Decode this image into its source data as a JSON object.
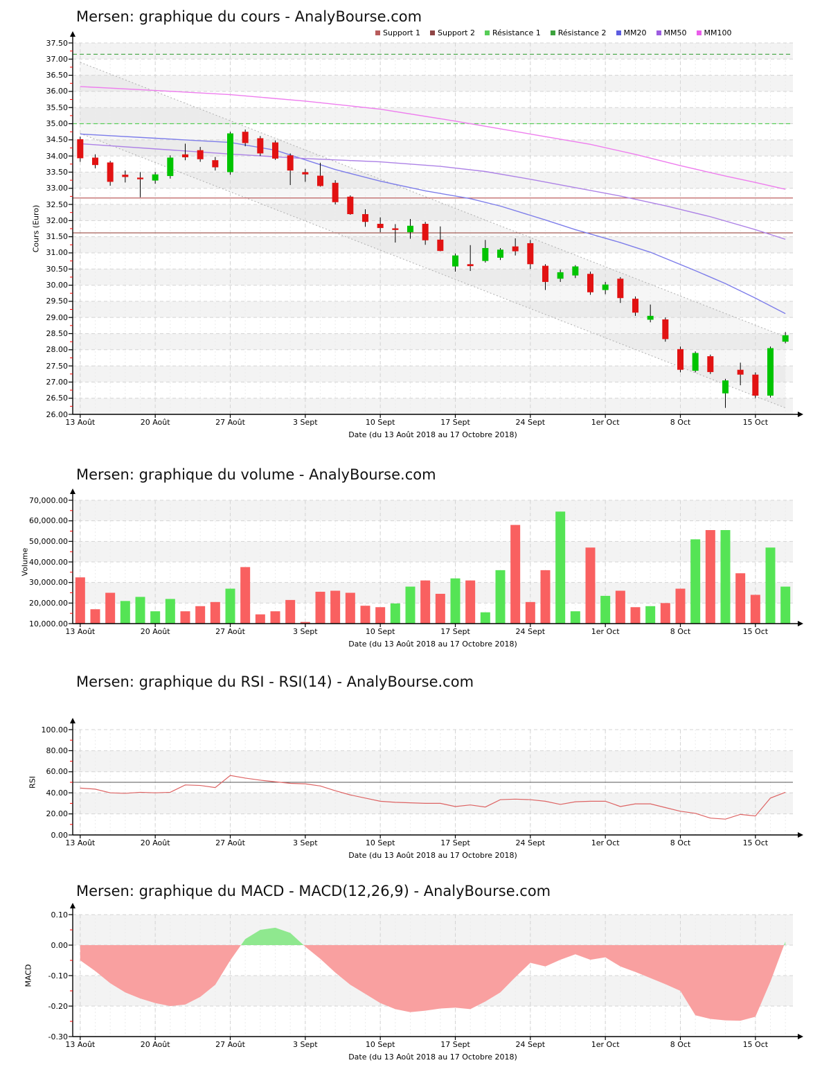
{
  "x_axis": {
    "title": "Date (du 13 Août 2018 au 17 Octobre 2018)",
    "n_days": 48,
    "tick_days": [
      0,
      5,
      10,
      15,
      20,
      25,
      30,
      35,
      40,
      45
    ],
    "tick_labels": [
      "13 Août",
      "20 Août",
      "27 Août",
      "3 Sept",
      "10 Sept",
      "17 Sept",
      "24 Sept",
      "1er Oct",
      "8 Oct",
      "15 Oct"
    ],
    "dates": [
      "13/08",
      "14/08",
      "15/08",
      "16/08",
      "17/08",
      "20/08",
      "21/08",
      "22/08",
      "23/08",
      "24/08",
      "27/08",
      "28/08",
      "29/08",
      "30/08",
      "31/08",
      "03/09",
      "04/09",
      "05/09",
      "06/09",
      "07/09",
      "10/09",
      "11/09",
      "12/09",
      "13/09",
      "14/09",
      "17/09",
      "18/09",
      "19/09",
      "20/09",
      "21/09",
      "24/09",
      "25/09",
      "26/09",
      "27/09",
      "28/09",
      "01/10",
      "02/10",
      "03/10",
      "04/10",
      "05/10",
      "08/10",
      "09/10",
      "10/10",
      "11/10",
      "12/10",
      "15/10",
      "16/10",
      "17/10"
    ]
  },
  "legend": {
    "items": [
      {
        "label": "Support 1",
        "color": "#b85c5c"
      },
      {
        "label": "Support 2",
        "color": "#8f4646"
      },
      {
        "label": "Résistance 1",
        "color": "#57cd57"
      },
      {
        "label": "Résistance 2",
        "color": "#3da23d"
      },
      {
        "label": "MM20",
        "color": "#5c5ce0"
      },
      {
        "label": "MM50",
        "color": "#9c5ce0"
      },
      {
        "label": "MM100",
        "color": "#ea5cea"
      }
    ]
  },
  "chart_data": [
    {
      "id": "price",
      "type": "candlestick",
      "title": "Mersen: graphique du cours - AnalyBourse.com",
      "ylabel": "Cours (Euro)",
      "ylim": [
        26.0,
        37.5
      ],
      "band_first_shaded": true,
      "y_tick_labels": [
        "37.50",
        "37.00",
        "36.50",
        "36.00",
        "35.50",
        "35.00",
        "34.50",
        "34.00",
        "33.50",
        "33.00",
        "32.50",
        "32.00",
        "31.50",
        "31.00",
        "30.50",
        "30.00",
        "29.50",
        "29.00",
        "28.50",
        "28.00",
        "27.50",
        "27.00",
        "26.50",
        "26.00"
      ],
      "colors": {
        "up": "#00c400",
        "down": "#e21212",
        "wick": "#000000"
      },
      "ohlc": [
        [
          34.52,
          34.6,
          33.82,
          33.93
        ],
        [
          33.95,
          34.05,
          33.62,
          33.72
        ],
        [
          33.8,
          33.85,
          33.08,
          33.2
        ],
        [
          33.42,
          33.55,
          33.18,
          33.35
        ],
        [
          33.33,
          33.5,
          32.72,
          33.28
        ],
        [
          33.24,
          33.5,
          33.14,
          33.43
        ],
        [
          33.38,
          34.02,
          33.3,
          33.95
        ],
        [
          34.05,
          34.38,
          33.87,
          33.96
        ],
        [
          34.18,
          34.28,
          33.82,
          33.9
        ],
        [
          33.87,
          33.97,
          33.55,
          33.65
        ],
        [
          33.5,
          34.75,
          33.42,
          34.7
        ],
        [
          34.75,
          34.82,
          34.3,
          34.4
        ],
        [
          34.55,
          34.62,
          34.0,
          34.08
        ],
        [
          34.42,
          34.48,
          33.88,
          33.92
        ],
        [
          34.02,
          34.08,
          33.1,
          33.55
        ],
        [
          33.5,
          33.6,
          33.2,
          33.43
        ],
        [
          33.39,
          33.79,
          33.05,
          33.07
        ],
        [
          33.17,
          33.25,
          32.5,
          32.57
        ],
        [
          32.74,
          32.78,
          32.18,
          32.2
        ],
        [
          32.2,
          32.35,
          31.81,
          31.96
        ],
        [
          31.9,
          32.1,
          31.64,
          31.77
        ],
        [
          31.76,
          31.89,
          31.32,
          31.71
        ],
        [
          31.64,
          32.05,
          31.44,
          31.84
        ],
        [
          31.9,
          31.96,
          31.25,
          31.39
        ],
        [
          31.41,
          31.82,
          31.05,
          31.06
        ],
        [
          30.58,
          30.98,
          30.42,
          30.92
        ],
        [
          30.65,
          31.24,
          30.44,
          30.59
        ],
        [
          30.75,
          31.4,
          30.7,
          31.15
        ],
        [
          30.85,
          31.15,
          30.78,
          31.1
        ],
        [
          31.2,
          31.45,
          30.92,
          31.05
        ],
        [
          31.3,
          31.4,
          30.5,
          30.65
        ],
        [
          30.6,
          30.65,
          29.85,
          30.1
        ],
        [
          30.2,
          30.48,
          30.1,
          30.4
        ],
        [
          30.3,
          30.62,
          30.22,
          30.58
        ],
        [
          30.35,
          30.42,
          29.7,
          29.78
        ],
        [
          29.85,
          30.1,
          29.72,
          30.02
        ],
        [
          30.2,
          30.25,
          29.45,
          29.6
        ],
        [
          29.58,
          29.65,
          29.05,
          29.15
        ],
        [
          28.93,
          29.4,
          28.85,
          29.05
        ],
        [
          28.94,
          29.0,
          28.25,
          28.33
        ],
        [
          28.02,
          28.1,
          27.3,
          27.38
        ],
        [
          27.35,
          27.95,
          27.3,
          27.9
        ],
        [
          27.8,
          27.85,
          27.25,
          27.31
        ],
        [
          26.65,
          27.1,
          26.2,
          27.05
        ],
        [
          27.38,
          27.6,
          26.9,
          27.23
        ],
        [
          27.23,
          27.3,
          26.5,
          26.58
        ],
        [
          26.58,
          28.1,
          26.52,
          28.05
        ],
        [
          28.25,
          28.55,
          28.2,
          28.45
        ]
      ],
      "overlays": {
        "hlines": [
          {
            "name": "resistance2",
            "value": 37.15,
            "color": "#3da23d",
            "dash": "6 4"
          },
          {
            "name": "resistance1",
            "value": 35.0,
            "color": "#57cd57",
            "dash": "6 4"
          },
          {
            "name": "support1",
            "value": 32.7,
            "color": "#bb5f5f",
            "dash": ""
          },
          {
            "name": "support2",
            "value": 31.62,
            "color": "#9a4a42",
            "dash": ""
          }
        ],
        "mm": [
          {
            "name": "mm20",
            "color": "#7d7dea",
            "points": [
              [
                0,
                34.68
              ],
              [
                5,
                34.55
              ],
              [
                10,
                34.42
              ],
              [
                13,
                34.18
              ],
              [
                15,
                33.88
              ],
              [
                17,
                33.58
              ],
              [
                20,
                33.22
              ],
              [
                23,
                32.92
              ],
              [
                26,
                32.68
              ],
              [
                28,
                32.45
              ],
              [
                31,
                32.02
              ],
              [
                33,
                31.72
              ],
              [
                36,
                31.32
              ],
              [
                38,
                31.02
              ],
              [
                41,
                30.45
              ],
              [
                43,
                30.05
              ],
              [
                45,
                29.6
              ],
              [
                47,
                29.12
              ]
            ]
          },
          {
            "name": "mm50",
            "color": "#ad82e6",
            "points": [
              [
                0,
                34.38
              ],
              [
                5,
                34.22
              ],
              [
                10,
                34.06
              ],
              [
                15,
                33.92
              ],
              [
                20,
                33.82
              ],
              [
                24,
                33.68
              ],
              [
                27,
                33.52
              ],
              [
                30,
                33.28
              ],
              [
                33,
                33.02
              ],
              [
                36,
                32.76
              ],
              [
                39,
                32.46
              ],
              [
                42,
                32.12
              ],
              [
                45,
                31.72
              ],
              [
                47,
                31.42
              ]
            ]
          },
          {
            "name": "mm100",
            "color": "#ee7dee",
            "points": [
              [
                0,
                36.15
              ],
              [
                5,
                36.03
              ],
              [
                10,
                35.9
              ],
              [
                15,
                35.7
              ],
              [
                20,
                35.45
              ],
              [
                25,
                35.08
              ],
              [
                28,
                34.84
              ],
              [
                31,
                34.6
              ],
              [
                34,
                34.36
              ],
              [
                37,
                34.05
              ],
              [
                40,
                33.7
              ],
              [
                43,
                33.38
              ],
              [
                45,
                33.18
              ],
              [
                47,
                32.97
              ]
            ]
          }
        ],
        "channel": {
          "color": "#b4b4b4",
          "fill": "rgba(140,140,140,0.08)",
          "upper": [
            [
              0,
              36.9
            ],
            [
              47,
              28.4
            ]
          ],
          "lower": [
            [
              0,
              34.7
            ],
            [
              47,
              26.2
            ]
          ]
        }
      }
    },
    {
      "id": "volume",
      "type": "bar",
      "title": "Mersen: graphique du volume - AnalyBourse.com",
      "ylabel": "Volume",
      "ylim": [
        10000,
        70000
      ],
      "band_first_shaded": true,
      "y_tick_labels": [
        "70,000.00",
        "60,000.00",
        "50,000.00",
        "40,000.00",
        "30,000.00",
        "20,000.00",
        "10,000.00"
      ],
      "colors": {
        "up": "#55e455",
        "down": "#f96060"
      },
      "values": [
        32500,
        17000,
        25000,
        21000,
        23000,
        16000,
        22000,
        16000,
        18500,
        20500,
        27000,
        37500,
        14500,
        16000,
        21500,
        10800,
        25500,
        26000,
        25000,
        18700,
        18000,
        19800,
        28000,
        31000,
        24500,
        32000,
        31000,
        15500,
        36000,
        58000,
        20500,
        36000,
        64500,
        16000,
        47000,
        23500,
        26000,
        18000,
        18500,
        20000,
        27000,
        51000,
        55500,
        55500,
        34500,
        24000,
        47000,
        28000
      ],
      "bar_dirs": [
        "d",
        "d",
        "d",
        "u",
        "u",
        "u",
        "u",
        "d",
        "d",
        "d",
        "u",
        "d",
        "d",
        "d",
        "d",
        "d",
        "d",
        "d",
        "d",
        "d",
        "d",
        "u",
        "u",
        "d",
        "d",
        "u",
        "d",
        "u",
        "u",
        "d",
        "d",
        "d",
        "u",
        "u",
        "d",
        "u",
        "d",
        "d",
        "u",
        "d",
        "d",
        "u",
        "d",
        "u",
        "d",
        "d",
        "u",
        "u"
      ]
    },
    {
      "id": "rsi",
      "type": "line",
      "title": "Mersen: graphique du RSI - RSI(14) - AnalyBourse.com",
      "ylabel": "RSI",
      "ylim": [
        0,
        100
      ],
      "band_first_shaded": false,
      "y_tick_labels": [
        "100.00",
        "80.00",
        "60.00",
        "40.00",
        "20.00",
        "0.00"
      ],
      "colors": {
        "line": "#dd6363",
        "hline": "#555555"
      },
      "hline": 50,
      "values": [
        44.5,
        43.5,
        40.0,
        39.5,
        40.5,
        40.0,
        40.5,
        47.5,
        47.0,
        45.0,
        56.5,
        54.0,
        52.0,
        50.5,
        49.0,
        48.5,
        46.5,
        42.0,
        38.0,
        35.0,
        32.0,
        31.0,
        30.5,
        30.0,
        30.0,
        27.0,
        28.5,
        26.5,
        33.5,
        34.0,
        33.5,
        32.0,
        29.0,
        31.5,
        32.0,
        32.0,
        27.0,
        29.5,
        29.5,
        26.0,
        22.5,
        20.5,
        16.0,
        15.0,
        19.5,
        18.0,
        35.0,
        40.5
      ]
    },
    {
      "id": "macd",
      "type": "area",
      "title": "Mersen: graphique du MACD - MACD(12,26,9) - AnalyBourse.com",
      "ylabel": "MACD",
      "ylim": [
        -0.3,
        0.1
      ],
      "band_first_shaded": true,
      "y_tick_labels": [
        "0.10",
        "0.00",
        "-0.10",
        "-0.20",
        "-0.30"
      ],
      "colors": {
        "positive": "#8fe88f",
        "negative": "#f9a0a0"
      },
      "baseline": 0,
      "values": [
        -0.05,
        -0.085,
        -0.125,
        -0.155,
        -0.175,
        -0.19,
        -0.2,
        -0.195,
        -0.17,
        -0.13,
        -0.05,
        0.02,
        0.05,
        0.057,
        0.04,
        -0.005,
        -0.045,
        -0.09,
        -0.13,
        -0.16,
        -0.19,
        -0.21,
        -0.22,
        -0.215,
        -0.208,
        -0.205,
        -0.21,
        -0.185,
        -0.155,
        -0.105,
        -0.058,
        -0.07,
        -0.048,
        -0.03,
        -0.048,
        -0.04,
        -0.07,
        -0.088,
        -0.108,
        -0.128,
        -0.15,
        -0.23,
        -0.242,
        -0.247,
        -0.248,
        -0.235,
        -0.12,
        0.012
      ]
    }
  ]
}
